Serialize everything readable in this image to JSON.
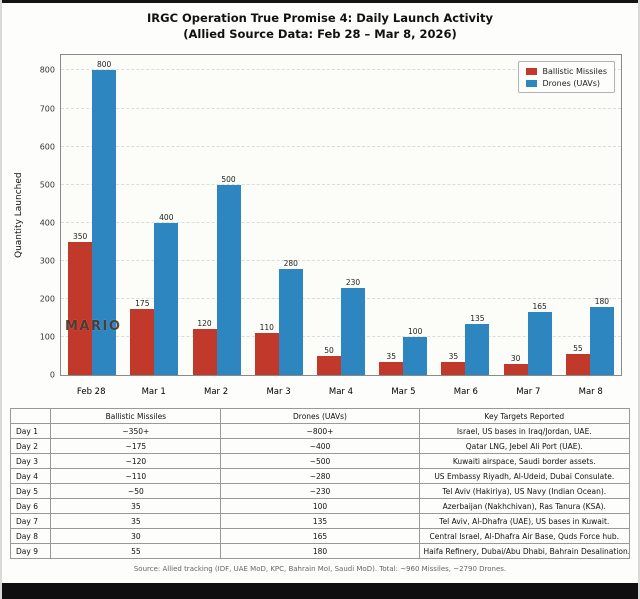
{
  "chart_data": {
    "type": "bar",
    "title": "IRGC Operation True Promise 4: Daily Launch Activity",
    "subtitle": "(Allied Source Data: Feb 28 – Mar 8, 2026)",
    "categories": [
      "Feb 28",
      "Mar 1",
      "Mar 2",
      "Mar 3",
      "Mar 4",
      "Mar 5",
      "Mar 6",
      "Mar 7",
      "Mar 8"
    ],
    "series": [
      {
        "name": "Ballistic Missiles",
        "color": "#c0392b",
        "values": [
          350,
          175,
          120,
          110,
          50,
          35,
          35,
          30,
          55
        ]
      },
      {
        "name": "Drones (UAVs)",
        "color": "#2e86c1",
        "values": [
          800,
          400,
          500,
          280,
          230,
          100,
          135,
          165,
          180
        ]
      }
    ],
    "xlabel": "",
    "ylabel": "Quantity Launched",
    "ylim": [
      0,
      840
    ],
    "yticks": [
      0,
      100,
      200,
      300,
      400,
      500,
      600,
      700,
      800
    ],
    "grid": true,
    "legend_position": "top-right"
  },
  "watermark": "MARIO",
  "table": {
    "headers": [
      "",
      "Ballistic Missiles",
      "Drones (UAVs)",
      "Key Targets Reported"
    ],
    "rows": [
      [
        "Day 1",
        "~350+",
        "~800+",
        "Israel, US bases in Iraq/Jordan, UAE."
      ],
      [
        "Day 2",
        "~175",
        "~400",
        "Qatar LNG, Jebel Ali Port (UAE)."
      ],
      [
        "Day 3",
        "~120",
        "~500",
        "Kuwaiti airspace, Saudi border assets."
      ],
      [
        "Day 4",
        "~110",
        "~280",
        "US Embassy Riyadh, Al-Udeid, Dubai Consulate."
      ],
      [
        "Day 5",
        "~50",
        "~230",
        "Tel Aviv (Hakiriya), US Navy (Indian Ocean)."
      ],
      [
        "Day 6",
        "35",
        "100",
        "Azerbaijan (Nakhchivan), Ras Tanura (KSA)."
      ],
      [
        "Day 7",
        "35",
        "135",
        "Tel Aviv, Al-Dhafra (UAE), US bases in Kuwait."
      ],
      [
        "Day 8",
        "30",
        "165",
        "Central Israel, Al-Dhafra Air Base, Quds Force hub."
      ],
      [
        "Day 9",
        "55",
        "180",
        "Haifa Refinery, Dubai/Abu Dhabi, Bahrain Desalination."
      ]
    ]
  },
  "footer": "Source: Allied tracking (IDF, UAE MoD, KPC, Bahrain MoI, Saudi MoD). Total: ~960 Missiles, ~2790 Drones."
}
